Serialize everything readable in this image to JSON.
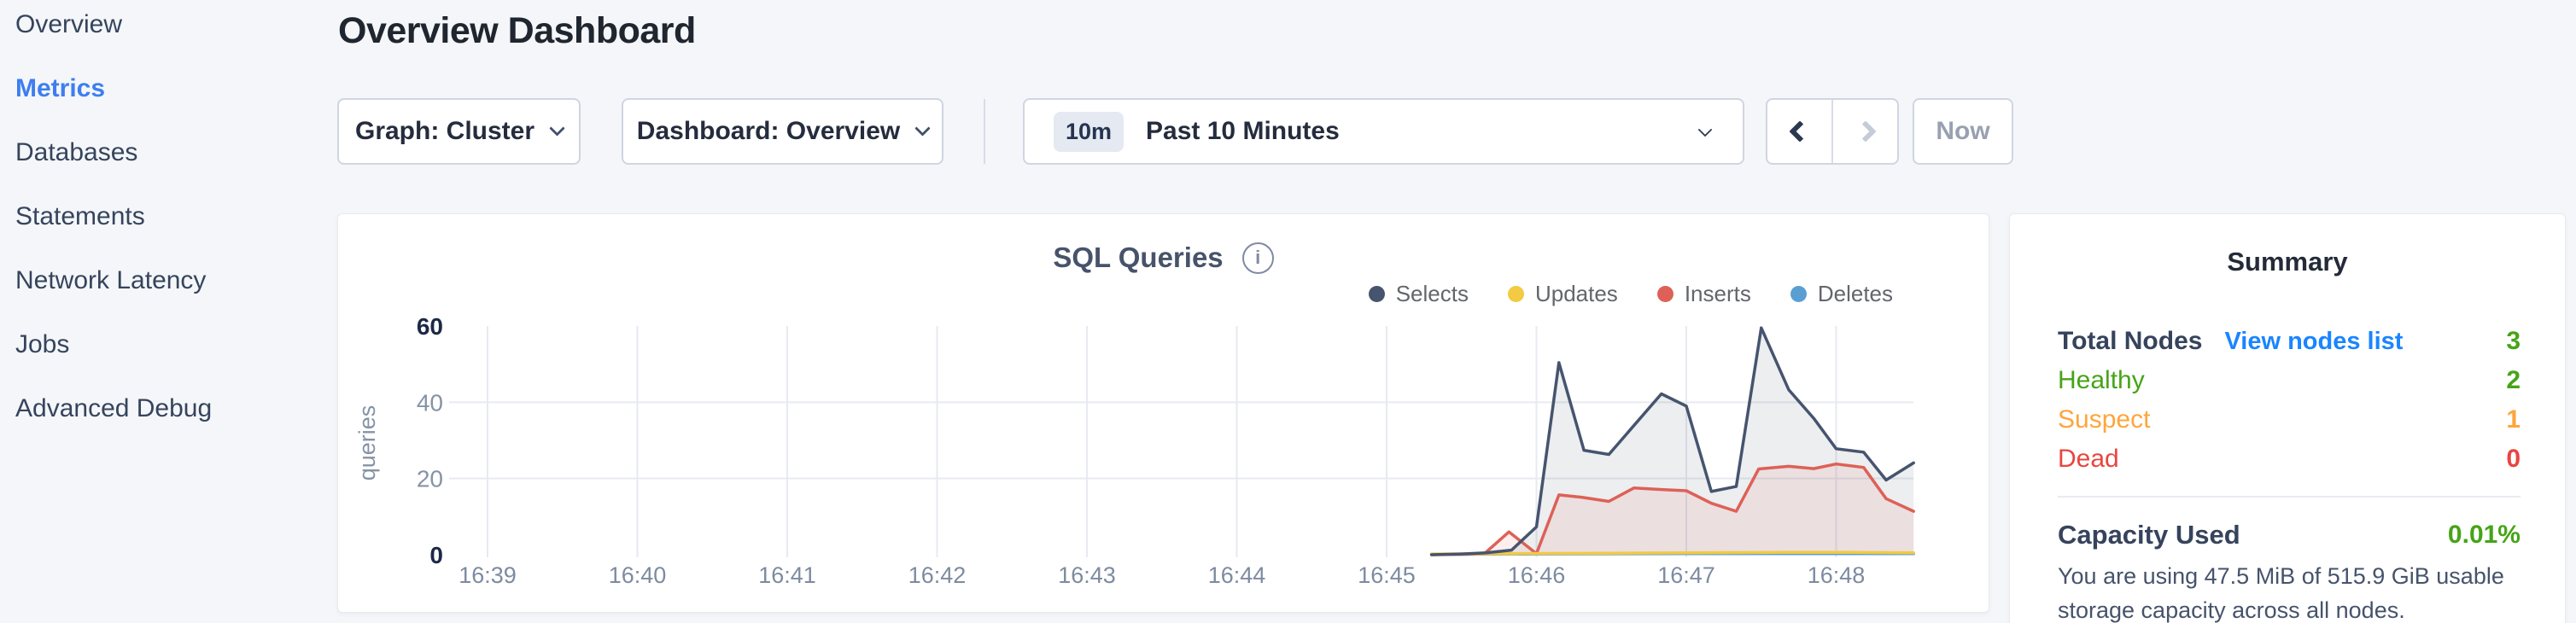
{
  "sidebar": {
    "items": [
      {
        "label": "Overview"
      },
      {
        "label": "Metrics"
      },
      {
        "label": "Databases"
      },
      {
        "label": "Statements"
      },
      {
        "label": "Network Latency"
      },
      {
        "label": "Jobs"
      },
      {
        "label": "Advanced Debug"
      }
    ],
    "active_item": "Metrics",
    "active_color": "#3d7ef0"
  },
  "header": {
    "title": "Overview Dashboard"
  },
  "toolbar": {
    "graph_dropdown": {
      "text": "Graph: Cluster"
    },
    "dashboard_dropdown": {
      "text": "Dashboard: Overview"
    },
    "time_range": {
      "badge": "10m",
      "text": "Past 10 Minutes"
    },
    "now_button": {
      "label": "Now"
    }
  },
  "chart_card": {
    "title": "SQL Queries",
    "info_icon": "i"
  },
  "chart_data": {
    "type": "area",
    "title": "SQL Queries",
    "ylabel": "queries",
    "ylim": [
      0,
      60
    ],
    "yticks": [
      0,
      20,
      40,
      60
    ],
    "x_tick_labels": [
      "16:39",
      "16:40",
      "16:41",
      "16:42",
      "16:43",
      "16:44",
      "16:45",
      "16:46",
      "16:47",
      "16:48"
    ],
    "x_tick_seconds": [
      0,
      60,
      120,
      180,
      240,
      300,
      360,
      420,
      480,
      540
    ],
    "x_domain_seconds": [
      -14,
      571
    ],
    "legend_position": "top-right",
    "grid": {
      "vertical": "every minute",
      "horizontal_at": [
        20,
        40
      ]
    },
    "axis_colors": {
      "tick_strong": "#1c2946",
      "tick_weak": "#8693a6",
      "xlabel": "#7d8ba0",
      "gridline": "#e7eaf0"
    },
    "series": [
      {
        "name": "Selects",
        "color": "#46546e",
        "fill": "rgba(70,84,110,0.10)",
        "points": [
          [
            378,
            0
          ],
          [
            390,
            0.2
          ],
          [
            400,
            0.5
          ],
          [
            410,
            1.2
          ],
          [
            420,
            7.3
          ],
          [
            429,
            50.4
          ],
          [
            439,
            27.4
          ],
          [
            449,
            26.3
          ],
          [
            470,
            42.2
          ],
          [
            480,
            39
          ],
          [
            490,
            16.6
          ],
          [
            500,
            17.9
          ],
          [
            510,
            59.5
          ],
          [
            521,
            43.3
          ],
          [
            531,
            35.8
          ],
          [
            540,
            27.8
          ],
          [
            551,
            26.9
          ],
          [
            560,
            19.6
          ],
          [
            571,
            24.1
          ]
        ]
      },
      {
        "name": "Updates",
        "color": "#f2ca43",
        "fill": "none",
        "points": [
          [
            378,
            0.2
          ],
          [
            410,
            0.3
          ],
          [
            450,
            0.4
          ],
          [
            480,
            0.5
          ],
          [
            520,
            0.6
          ],
          [
            545,
            0.6
          ],
          [
            571,
            0.5
          ]
        ]
      },
      {
        "name": "Inserts",
        "color": "#dd6157",
        "fill": "rgba(221,97,87,0.10)",
        "points": [
          [
            378,
            0
          ],
          [
            399,
            0.2
          ],
          [
            409,
            6
          ],
          [
            420,
            0.3
          ],
          [
            429,
            15.7
          ],
          [
            438,
            15.1
          ],
          [
            449,
            14
          ],
          [
            459,
            17.5
          ],
          [
            470,
            17.1
          ],
          [
            480,
            16.8
          ],
          [
            490,
            13.5
          ],
          [
            500,
            11.4
          ],
          [
            509,
            22.5
          ],
          [
            521,
            23.2
          ],
          [
            531,
            22.6
          ],
          [
            540,
            23.8
          ],
          [
            551,
            22.9
          ],
          [
            560,
            14.7
          ],
          [
            571,
            11.4
          ]
        ]
      },
      {
        "name": "Deletes",
        "color": "#5a9fd4",
        "fill": "none",
        "points": [
          [
            378,
            0.1
          ],
          [
            420,
            0.2
          ],
          [
            480,
            0.3
          ],
          [
            540,
            0.3
          ],
          [
            571,
            0.3
          ]
        ]
      }
    ]
  },
  "summary": {
    "title": "Summary",
    "rows": [
      {
        "label": "Total Nodes",
        "link": "View nodes list",
        "link_color": "#1a85ff",
        "value": "3",
        "label_color": "#36435c",
        "value_color": "#46a417"
      },
      {
        "label": "Healthy",
        "value": "2",
        "label_color": "#46a417",
        "value_color": "#46a417"
      },
      {
        "label": "Suspect",
        "value": "1",
        "label_color": "#ffa53b",
        "value_color": "#ffa53b"
      },
      {
        "label": "Dead",
        "value": "0",
        "label_color": "#e8463f",
        "value_color": "#e8463f"
      }
    ],
    "capacity": {
      "label": "Capacity Used",
      "value": "0.01%",
      "value_color": "#46a417",
      "description": "You are using 47.5 MiB of 515.9 GiB usable storage capacity across all nodes."
    }
  }
}
